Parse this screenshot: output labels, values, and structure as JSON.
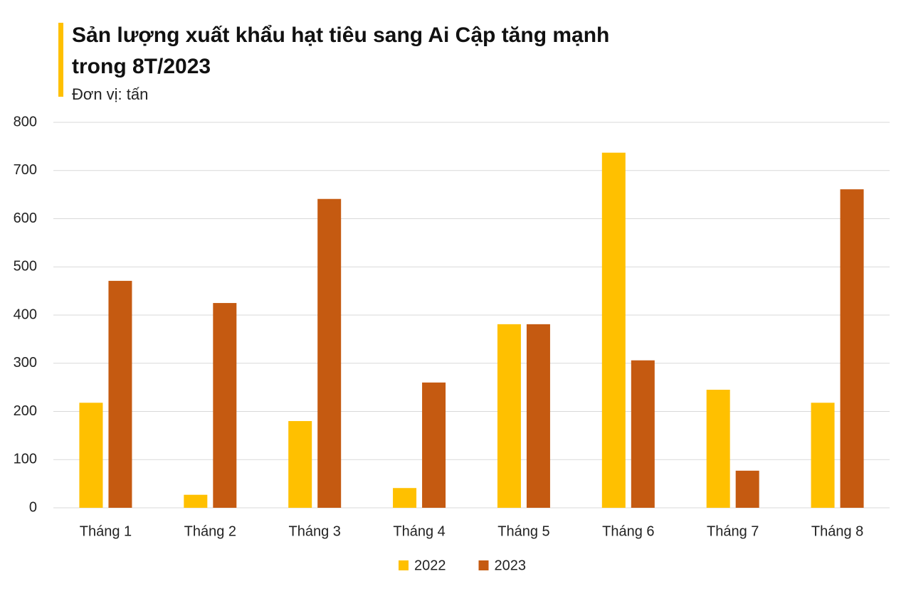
{
  "chart_data": {
    "type": "bar",
    "title": "Sản lượng xuất khẩu hạt tiêu sang Ai Cập tăng mạnh trong 8T/2023",
    "subtitle": "Đơn vị: tấn",
    "categories": [
      "Tháng 1",
      "Tháng 2",
      "Tháng 3",
      "Tháng 4",
      "Tháng 5",
      "Tháng 6",
      "Tháng 7",
      "Tháng 8"
    ],
    "series": [
      {
        "name": "2022",
        "color": "#ffc000",
        "values": [
          218,
          27,
          180,
          41,
          381,
          737,
          245,
          218
        ]
      },
      {
        "name": "2023",
        "color": "#c55a11",
        "values": [
          471,
          425,
          641,
          260,
          381,
          306,
          77,
          661
        ]
      }
    ],
    "ylim": [
      0,
      800
    ],
    "yticks": [
      0,
      100,
      200,
      300,
      400,
      500,
      600,
      700,
      800
    ],
    "grid": true,
    "legend": "bottom"
  }
}
